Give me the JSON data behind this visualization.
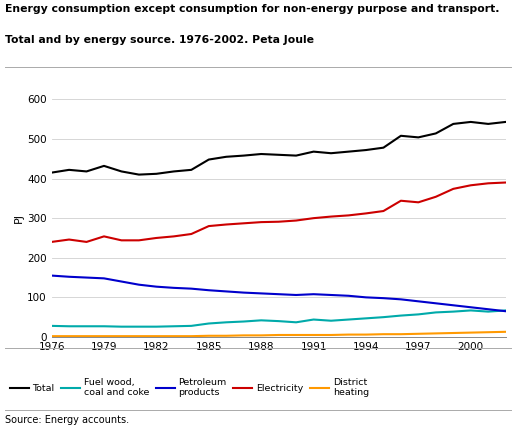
{
  "title_line1": "Energy consumption except consumption for non-energy purpose and transport.",
  "title_line2": "Total and by energy source. 1976-2002. Peta Joule",
  "ylabel": "PJ",
  "source": "Source: Energy accounts.",
  "years": [
    1976,
    1977,
    1978,
    1979,
    1980,
    1981,
    1982,
    1983,
    1984,
    1985,
    1986,
    1987,
    1988,
    1989,
    1990,
    1991,
    1992,
    1993,
    1994,
    1995,
    1996,
    1997,
    1998,
    1999,
    2000,
    2001,
    2002
  ],
  "total": [
    415,
    422,
    418,
    432,
    418,
    410,
    412,
    418,
    422,
    448,
    455,
    458,
    462,
    460,
    458,
    468,
    464,
    468,
    472,
    478,
    508,
    504,
    514,
    538,
    543,
    538,
    543
  ],
  "fuel_wood": [
    28,
    27,
    27,
    27,
    26,
    26,
    26,
    27,
    28,
    34,
    37,
    39,
    42,
    40,
    37,
    44,
    41,
    44,
    47,
    50,
    54,
    57,
    62,
    64,
    67,
    64,
    67
  ],
  "petroleum": [
    155,
    152,
    150,
    148,
    140,
    132,
    127,
    124,
    122,
    118,
    115,
    112,
    110,
    108,
    106,
    108,
    106,
    104,
    100,
    98,
    95,
    90,
    85,
    80,
    75,
    70,
    65
  ],
  "electricity": [
    240,
    246,
    240,
    254,
    244,
    244,
    250,
    254,
    260,
    280,
    284,
    287,
    290,
    291,
    294,
    300,
    304,
    307,
    312,
    318,
    344,
    340,
    354,
    374,
    383,
    388,
    390
  ],
  "district": [
    2,
    2,
    2,
    2,
    2,
    2,
    2,
    2,
    2,
    3,
    3,
    4,
    4,
    5,
    5,
    5,
    5,
    6,
    6,
    7,
    7,
    8,
    9,
    10,
    11,
    12,
    13
  ],
  "colors": {
    "total": "#000000",
    "fuel_wood": "#00aaaa",
    "petroleum": "#0000cc",
    "electricity": "#cc0000",
    "district": "#ff9900"
  },
  "legend_labels": {
    "total": "Total",
    "fuel_wood": "Fuel wood,\ncoal and coke",
    "petroleum": "Petroleum\nproducts",
    "electricity": "Electricity",
    "district": "District\nheating"
  },
  "ylim": [
    0,
    600
  ],
  "yticks": [
    0,
    100,
    200,
    300,
    400,
    500,
    600
  ],
  "xticks": [
    1976,
    1979,
    1982,
    1985,
    1988,
    1991,
    1994,
    1997,
    2000
  ]
}
